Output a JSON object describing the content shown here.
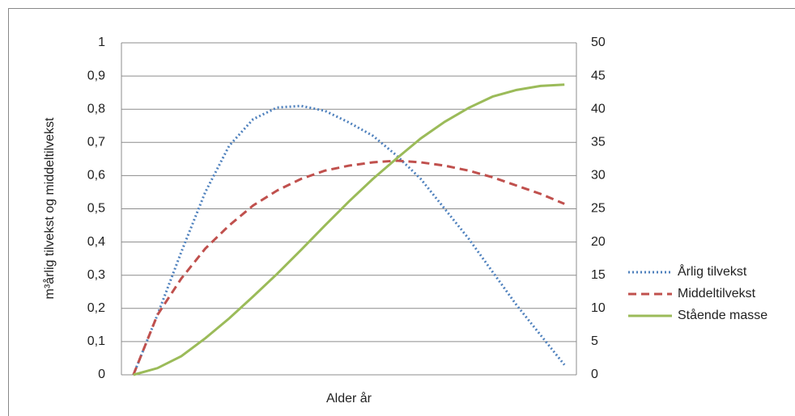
{
  "chart_data": {
    "type": "line",
    "ylabel": "m³årlig tilvekst og middeltilvekst",
    "xlabel": "Alder år",
    "categories": [
      null,
      null,
      null,
      null,
      null,
      null,
      null,
      null,
      null,
      null,
      null,
      null,
      null,
      null,
      null,
      null,
      null,
      null,
      null
    ],
    "ylim": [
      0,
      1
    ],
    "yticks": [
      0,
      {
        "value": 0.1,
        "label": "0,1"
      },
      {
        "value": 0.2,
        "label": "0,2"
      },
      {
        "value": 0.3,
        "label": "0,3"
      },
      {
        "value": 0.4,
        "label": "0,4"
      },
      {
        "value": 0.5,
        "label": "0,5"
      },
      {
        "value": 0.6,
        "label": "0,6"
      },
      {
        "value": 0.7,
        "label": "0,7"
      },
      {
        "value": 0.8,
        "label": "0,8"
      },
      {
        "value": 0.9,
        "label": "0,9"
      },
      1
    ],
    "y2lim": [
      0,
      50
    ],
    "y2ticks": [
      0,
      5,
      10,
      15,
      20,
      25,
      30,
      35,
      40,
      45,
      50
    ],
    "grid": true,
    "legend": "right",
    "series": [
      {
        "name": "Årlig tilvekst",
        "color": "#4f81bd",
        "style": "dotted",
        "values": [
          0,
          0.18,
          0.37,
          0.55,
          0.69,
          0.77,
          0.805,
          0.81,
          0.795,
          0.76,
          0.72,
          0.66,
          0.59,
          0.5,
          0.41,
          0.31,
          0.21,
          0.12,
          0.03
        ]
      },
      {
        "name": "Middeltilvekst",
        "color": "#c0504d",
        "style": "dashed",
        "values": [
          0,
          0.18,
          0.29,
          0.38,
          0.45,
          0.51,
          0.555,
          0.59,
          0.615,
          0.63,
          0.64,
          0.645,
          0.64,
          0.63,
          0.615,
          0.595,
          0.57,
          0.545,
          0.515
        ]
      },
      {
        "name": "Stående masse",
        "color": "#9bbb59",
        "style": "solid",
        "axis": "y2",
        "values": [
          0,
          1,
          2.8,
          5.5,
          8.5,
          11.8,
          15.2,
          18.8,
          22.5,
          26.1,
          29.5,
          32.6,
          35.6,
          38.1,
          40.2,
          41.9,
          42.9,
          43.5,
          43.7
        ]
      }
    ]
  }
}
